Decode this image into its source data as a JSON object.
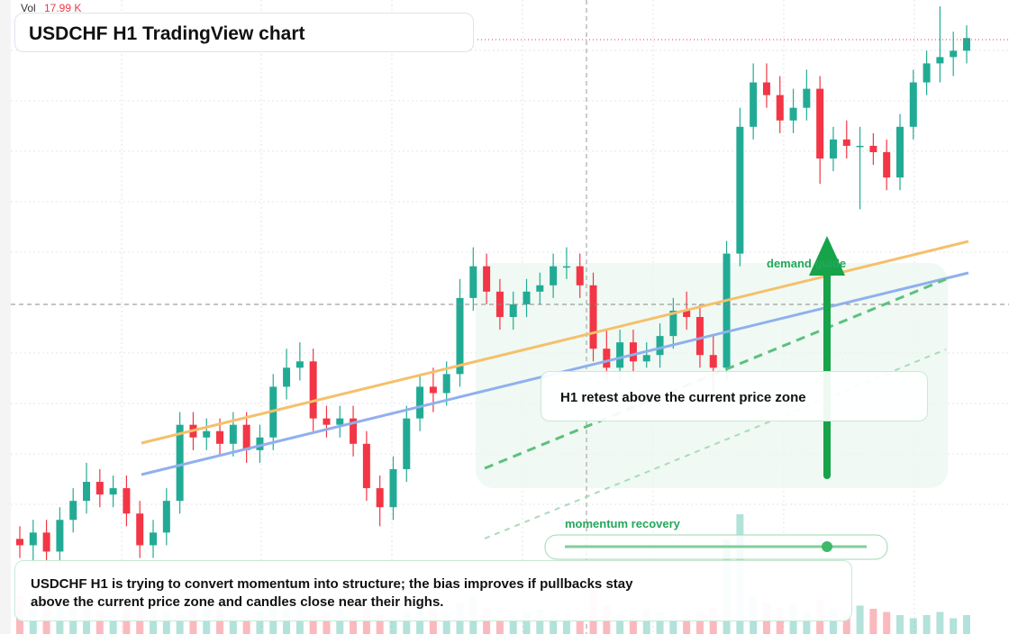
{
  "chart_data": {
    "type": "candlestick",
    "title": "USDCHF H1 TradingView chart",
    "volume_label": "Vol",
    "volume_value": "17.99 K",
    "annotations": {
      "zone": "demand guide",
      "retest": "H1 retest above the current price zone",
      "momentum": "momentum recovery",
      "summary": "USDCHF H1 is trying to convert momentum into structure; the bias improves if pullbacks stay above the current price zone and candles close near their highs."
    },
    "up_color": "#22ab94",
    "down_color": "#f23645",
    "ylim": [
      0,
      100
    ],
    "y2lim": [
      0,
      50
    ],
    "open": [
      15,
      14,
      16,
      13,
      18,
      21,
      24,
      22,
      23,
      19,
      14,
      16,
      21,
      33,
      31,
      32,
      30,
      33,
      29,
      31,
      39,
      42,
      43,
      34,
      33,
      34,
      30,
      23,
      20,
      26,
      34,
      39,
      38,
      41,
      53,
      58,
      54,
      50,
      52,
      54,
      55,
      58,
      58,
      55,
      45,
      42,
      46,
      43,
      44,
      47,
      51,
      50,
      44,
      42,
      60,
      80,
      87,
      85,
      81,
      83,
      86,
      75,
      78,
      77,
      77,
      76,
      72,
      80,
      87,
      90,
      91,
      92
    ],
    "high": [
      17,
      18,
      18,
      20,
      23,
      27,
      26,
      25,
      25,
      21,
      18,
      23,
      35,
      35,
      34,
      34,
      35,
      35,
      33,
      41,
      45,
      46,
      45,
      36,
      36,
      36,
      32,
      25,
      28,
      36,
      41,
      42,
      43,
      56,
      61,
      60,
      56,
      54,
      56,
      57,
      60,
      61,
      60,
      57,
      48,
      48,
      48,
      46,
      49,
      53,
      54,
      52,
      47,
      62,
      83,
      90,
      90,
      88,
      86,
      89,
      88,
      80,
      81,
      80,
      79,
      78,
      82,
      89,
      92,
      99,
      95,
      96
    ],
    "low": [
      12,
      11,
      11,
      11,
      16,
      19,
      20,
      20,
      17,
      12,
      12,
      14,
      19,
      29,
      29,
      28,
      28,
      27,
      27,
      29,
      37,
      40,
      32,
      31,
      31,
      28,
      21,
      17,
      18,
      24,
      32,
      35,
      36,
      39,
      51,
      52,
      48,
      48,
      50,
      52,
      53,
      56,
      53,
      43,
      40,
      40,
      41,
      42,
      42,
      45,
      48,
      42,
      38,
      40,
      58,
      78,
      83,
      79,
      79,
      81,
      71,
      73,
      75,
      67,
      74,
      70,
      70,
      78,
      85,
      87,
      88,
      90
    ],
    "close": [
      14,
      16,
      13,
      18,
      21,
      24,
      22,
      23,
      19,
      14,
      16,
      21,
      33,
      31,
      32,
      30,
      33,
      29,
      31,
      39,
      42,
      43,
      34,
      33,
      34,
      30,
      23,
      20,
      26,
      34,
      39,
      38,
      41,
      53,
      58,
      54,
      50,
      52,
      54,
      55,
      58,
      58,
      55,
      45,
      42,
      46,
      43,
      44,
      47,
      51,
      50,
      44,
      42,
      60,
      80,
      87,
      85,
      81,
      83,
      86,
      75,
      78,
      77,
      77,
      76,
      72,
      80,
      87,
      90,
      91,
      92,
      94
    ],
    "volume": [
      12,
      8,
      15,
      10,
      9,
      11,
      7,
      6,
      8,
      10,
      9,
      7,
      6,
      8,
      12,
      10,
      6,
      5,
      7,
      9,
      8,
      10,
      6,
      7,
      12,
      5,
      8,
      6,
      5,
      7,
      9,
      8,
      6,
      10,
      12,
      8,
      5,
      6,
      7,
      8,
      6,
      5,
      4,
      14,
      9,
      6,
      5,
      8,
      7,
      6,
      5,
      7,
      8,
      30,
      38,
      12,
      10,
      8,
      9,
      7,
      11,
      8,
      6,
      9,
      8,
      7,
      6,
      5,
      6,
      7,
      5,
      6
    ]
  }
}
